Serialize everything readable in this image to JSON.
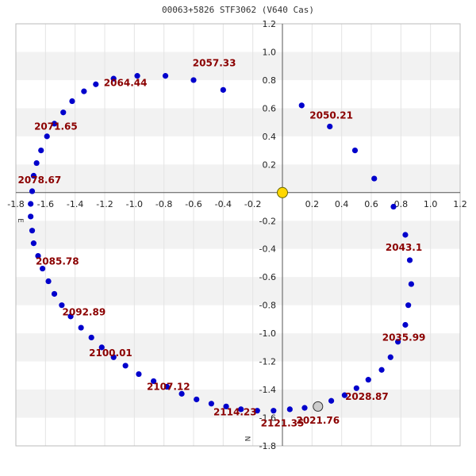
{
  "chart_data": {
    "type": "scatter",
    "title": "00063+5826 STF3062 (V640 Cas)",
    "xlim": [
      -1.8,
      1.2
    ],
    "ylim": [
      -1.8,
      1.2
    ],
    "x_ticks": [
      "-1.8",
      "-1.6",
      "-1.4",
      "-1.2",
      "-1.0",
      "-0.8",
      "-0.6",
      "-0.4",
      "-0.2",
      "0.2",
      "0.4",
      "0.6",
      "0.8",
      "1.0",
      "1.2"
    ],
    "x_tick_values": [
      -1.8,
      -1.6,
      -1.4,
      -1.2,
      -1.0,
      -0.8,
      -0.6,
      -0.4,
      -0.2,
      0.2,
      0.4,
      0.6,
      0.8,
      1.0,
      1.2
    ],
    "y_ticks": [
      "1.2",
      "1.0",
      "0.8",
      "0.6",
      "0.4",
      "0.2",
      "-0.2",
      "-0.4",
      "-0.6",
      "-0.8",
      "-1.0",
      "-1.2",
      "-1.4",
      "-1.6",
      "-1.8"
    ],
    "y_tick_values": [
      1.2,
      1.0,
      0.8,
      0.6,
      0.4,
      0.2,
      -0.2,
      -0.4,
      -0.6,
      -0.8,
      -1.0,
      -1.2,
      -1.4,
      -1.6,
      -1.8
    ],
    "direction_labels": {
      "east": "E",
      "north": "N"
    },
    "grid": true,
    "colors": {
      "points": "#0000cc",
      "primary": "#ffd700",
      "current": "#cccccc",
      "labels": "#8b0000",
      "band": "#f2f2f2"
    },
    "primary_star": {
      "x": 0.0,
      "y": 0.0
    },
    "current_position": {
      "x": 0.24,
      "y": -1.52
    },
    "points": [
      [
        0.13,
        0.62
      ],
      [
        0.32,
        0.47
      ],
      [
        0.49,
        0.3
      ],
      [
        0.62,
        0.1
      ],
      [
        0.75,
        -0.1
      ],
      [
        0.83,
        -0.3
      ],
      [
        0.86,
        -0.48
      ],
      [
        0.87,
        -0.65
      ],
      [
        0.85,
        -0.8
      ],
      [
        0.83,
        -0.94
      ],
      [
        0.78,
        -1.06
      ],
      [
        0.73,
        -1.17
      ],
      [
        0.67,
        -1.26
      ],
      [
        0.58,
        -1.33
      ],
      [
        0.5,
        -1.39
      ],
      [
        0.42,
        -1.44
      ],
      [
        0.33,
        -1.48
      ],
      [
        0.15,
        -1.53
      ],
      [
        0.05,
        -1.54
      ],
      [
        -0.06,
        -1.55
      ],
      [
        -0.17,
        -1.55
      ],
      [
        -0.28,
        -1.54
      ],
      [
        -0.38,
        -1.52
      ],
      [
        -0.48,
        -1.5
      ],
      [
        -0.58,
        -1.47
      ],
      [
        -0.68,
        -1.43
      ],
      [
        -0.78,
        -1.38
      ],
      [
        -0.87,
        -1.34
      ],
      [
        -0.97,
        -1.29
      ],
      [
        -1.06,
        -1.23
      ],
      [
        -1.14,
        -1.17
      ],
      [
        -1.22,
        -1.1
      ],
      [
        -1.29,
        -1.03
      ],
      [
        -1.36,
        -0.96
      ],
      [
        -1.43,
        -0.88
      ],
      [
        -1.49,
        -0.8
      ],
      [
        -1.54,
        -0.72
      ],
      [
        -1.58,
        -0.63
      ],
      [
        -1.62,
        -0.54
      ],
      [
        -1.65,
        -0.45
      ],
      [
        -1.68,
        -0.36
      ],
      [
        -1.69,
        -0.27
      ],
      [
        -1.7,
        -0.17
      ],
      [
        -1.7,
        -0.08
      ],
      [
        -1.69,
        0.01
      ],
      [
        -1.68,
        0.12
      ],
      [
        -1.66,
        0.21
      ],
      [
        -1.63,
        0.3
      ],
      [
        -1.59,
        0.4
      ],
      [
        -1.54,
        0.49
      ],
      [
        -1.48,
        0.57
      ],
      [
        -1.42,
        0.65
      ],
      [
        -1.34,
        0.72
      ],
      [
        -1.26,
        0.77
      ],
      [
        -1.14,
        0.81
      ],
      [
        -0.98,
        0.83
      ],
      [
        -0.79,
        0.83
      ],
      [
        -0.6,
        0.8
      ],
      [
        -0.4,
        0.73
      ]
    ],
    "epoch_labels": [
      {
        "text": "2057.33",
        "x": -0.46,
        "y": 0.92
      },
      {
        "text": "2064.44",
        "x": -1.06,
        "y": 0.78
      },
      {
        "text": "2071.65",
        "x": -1.53,
        "y": 0.47
      },
      {
        "text": "2078.67",
        "x": -1.64,
        "y": 0.09
      },
      {
        "text": "2050.21",
        "x": 0.33,
        "y": 0.55
      },
      {
        "text": "2043.1",
        "x": 0.82,
        "y": -0.39
      },
      {
        "text": "2085.78",
        "x": -1.52,
        "y": -0.49
      },
      {
        "text": "2092.89",
        "x": -1.34,
        "y": -0.85
      },
      {
        "text": "2100.01",
        "x": -1.16,
        "y": -1.14
      },
      {
        "text": "2035.99",
        "x": 0.82,
        "y": -1.03
      },
      {
        "text": "2107.12",
        "x": -0.77,
        "y": -1.38
      },
      {
        "text": "2028.87",
        "x": 0.57,
        "y": -1.45
      },
      {
        "text": "2114.23",
        "x": -0.32,
        "y": -1.56
      },
      {
        "text": "2021.76",
        "x": 0.24,
        "y": -1.62
      },
      {
        "text": "2121.35",
        "x": 0.0,
        "y": -1.64
      }
    ]
  }
}
